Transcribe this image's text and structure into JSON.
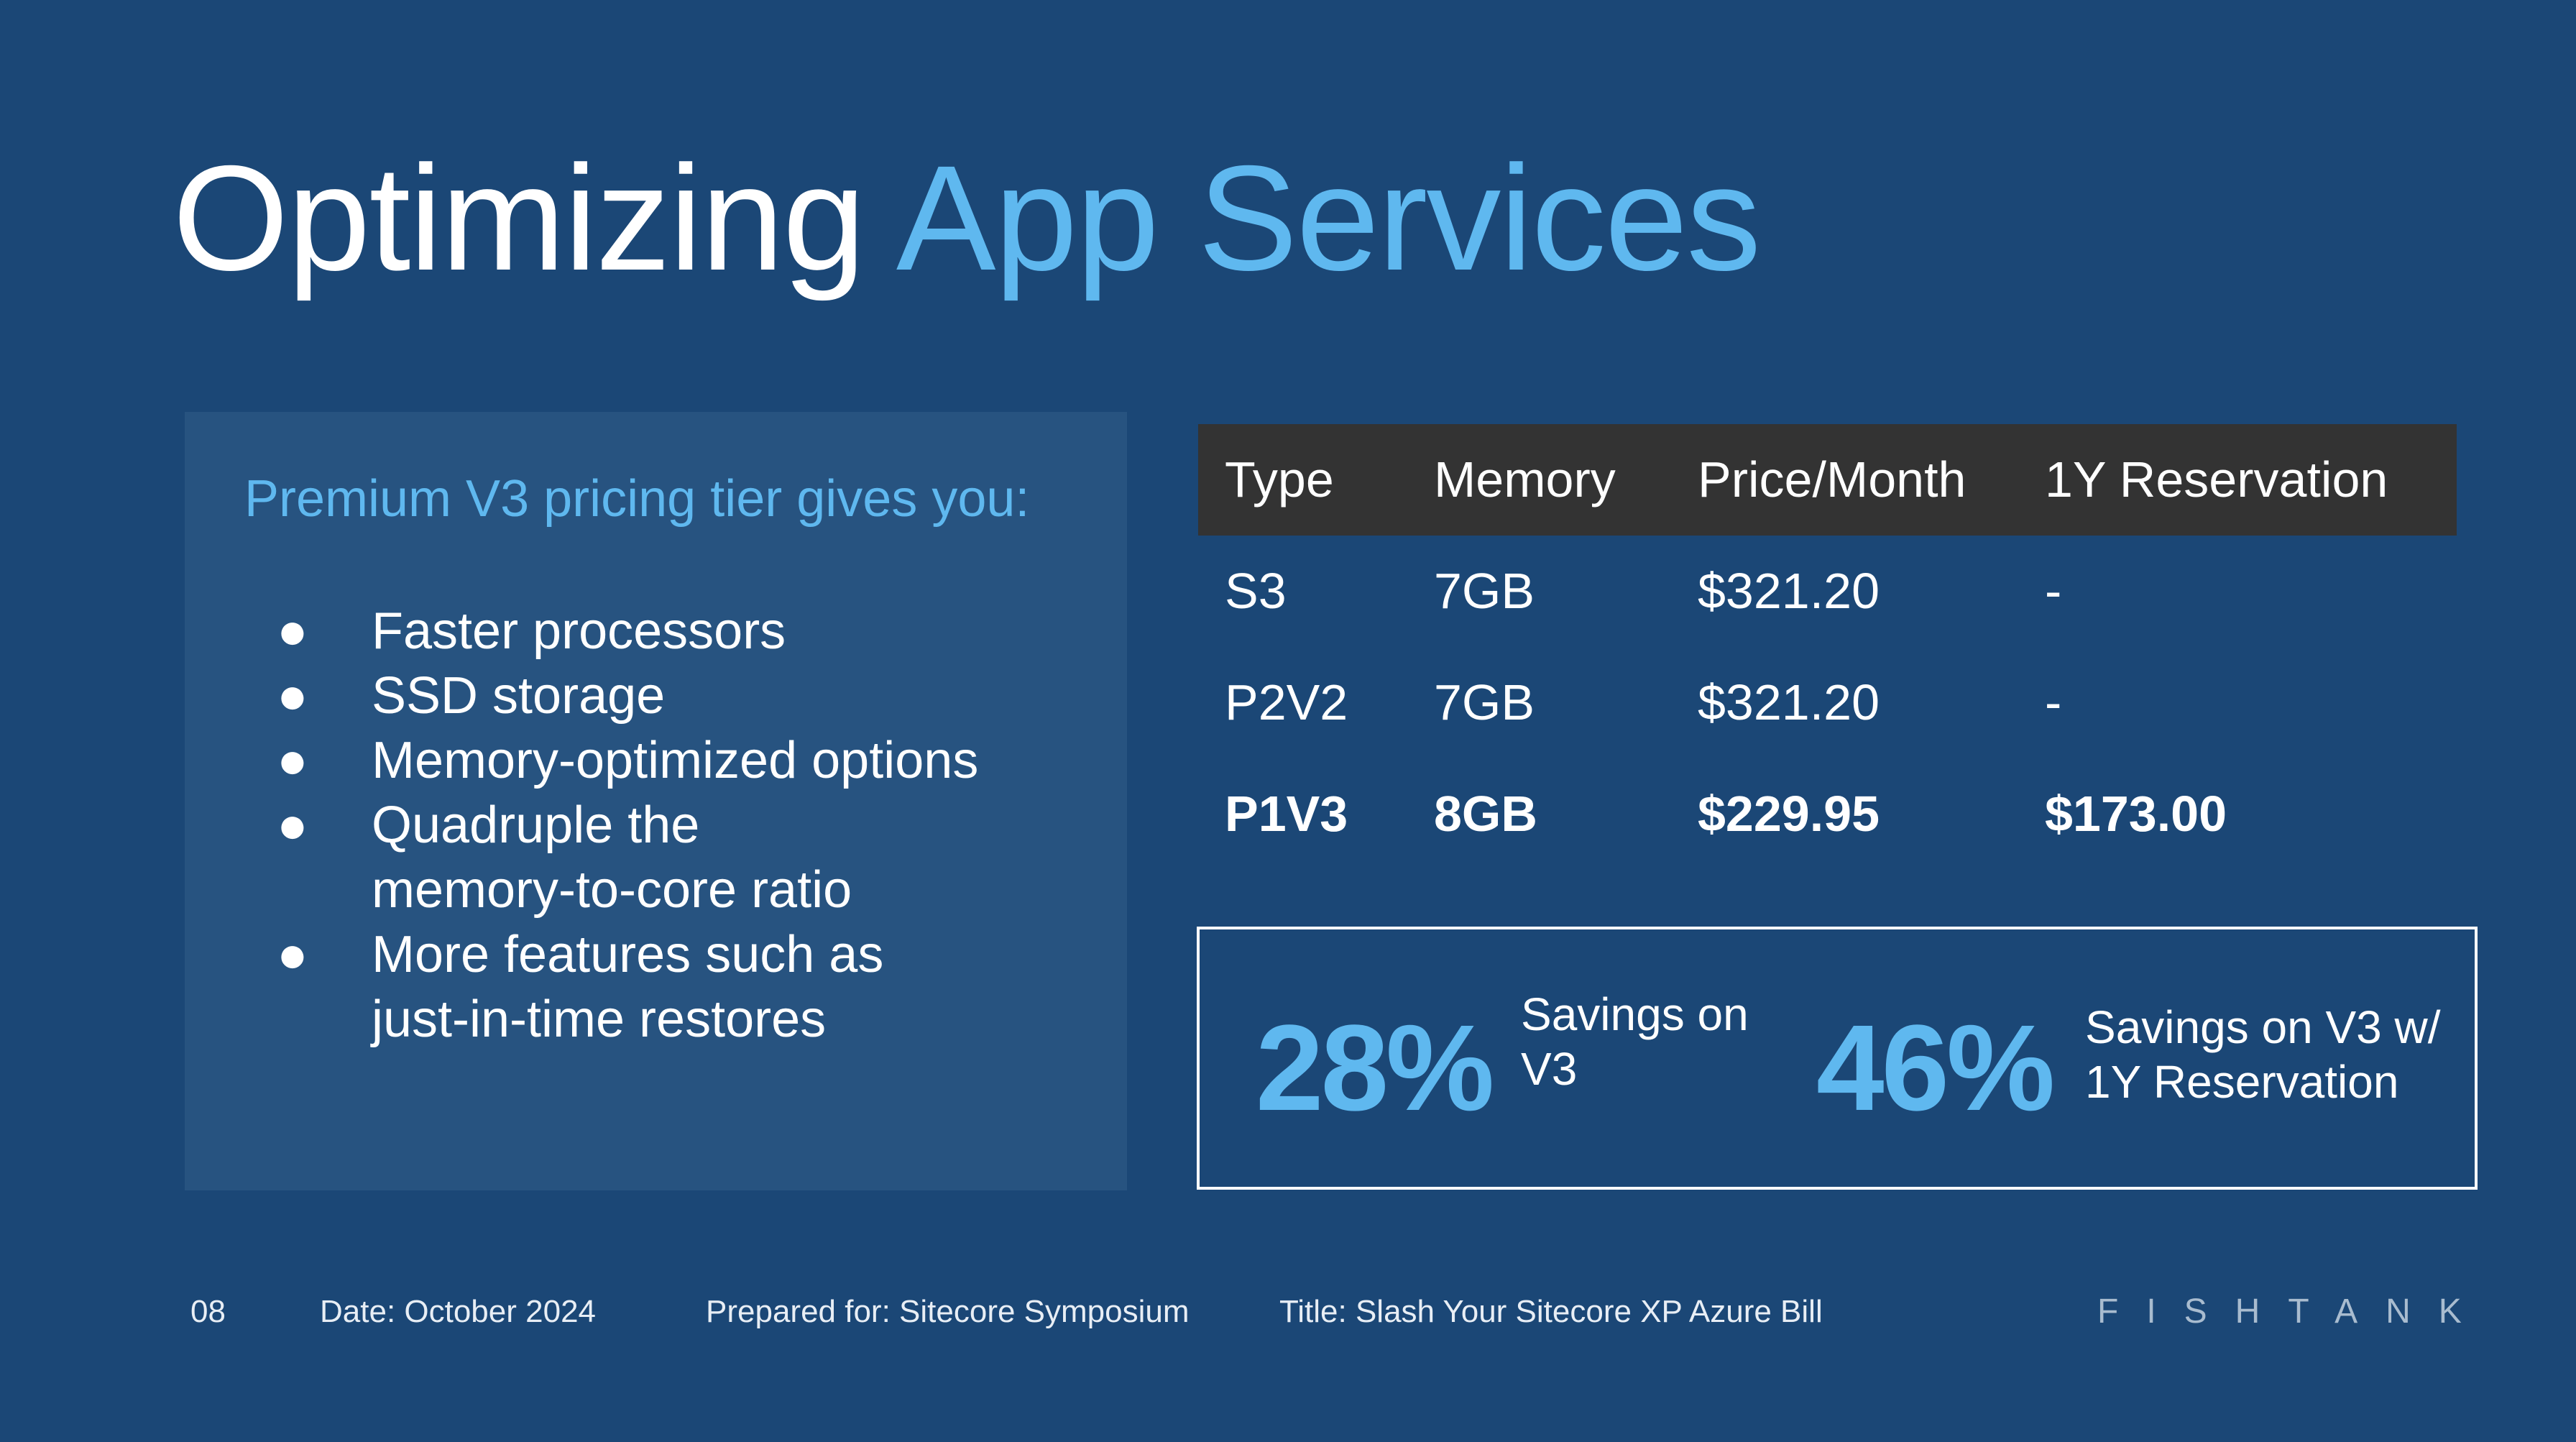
{
  "title": {
    "main": "Optimizing",
    "accent": "App Services"
  },
  "panel": {
    "heading": "Premium V3 pricing tier gives you:",
    "bullets": [
      "Faster processors",
      "SSD storage",
      "Memory-optimized options",
      "Quadruple the memory-to-core ratio",
      "More features such as just-in-time restores"
    ],
    "bullet_glyph": "●"
  },
  "table": {
    "headers": [
      "Type",
      "Memory",
      "Price/Month",
      "1Y Reservation"
    ],
    "rows": [
      [
        "S3",
        "7GB",
        "$321.20",
        "-"
      ],
      [
        "P2V2",
        "7GB",
        "$321.20",
        "-"
      ],
      [
        "P1V3",
        "8GB",
        "$229.95",
        "$173.00"
      ]
    ]
  },
  "savings": {
    "first_pct": "28%",
    "first_label": "Savings on V3",
    "second_pct": "46%",
    "second_label": "Savings on V3 w/ 1Y Reservation"
  },
  "footer": {
    "page": "08",
    "date": "Date: October 2024",
    "prepared_for": "Prepared for: Sitecore Symposium",
    "title": "Title: Slash Your Sitecore XP Azure Bill",
    "logo": "FISHTANK"
  },
  "colors": {
    "background": "#1b4776",
    "panel": "#275380",
    "accent": "#5fb8ef",
    "table_header": "#333333"
  }
}
